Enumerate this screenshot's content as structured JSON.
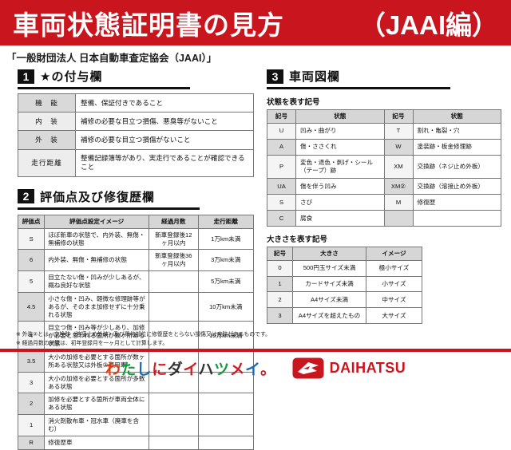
{
  "header": {
    "title": "車両状態証明書の見方",
    "edition": "（JAAI編）",
    "subtitle": "「一般財団法人 日本自動車査定協会（JAAI）」",
    "accent_color": "#c9151e"
  },
  "section1": {
    "number": "1",
    "title": "★の付与欄",
    "rows": [
      {
        "label": "機　能",
        "desc": "整備、保証付きであること"
      },
      {
        "label": "内　装",
        "desc": "補修の必要な目立つ損傷、悪臭等がないこと"
      },
      {
        "label": "外　装",
        "desc": "補修の必要な目立つ損傷がないこと"
      },
      {
        "label": "走行距離",
        "desc": "整備記録簿等があり、実走行であることが確認できること"
      }
    ]
  },
  "section2": {
    "number": "2",
    "title": "評価点及び修復歴欄",
    "headers": [
      "評価点",
      "評価点設定イメージ",
      "経過月数",
      "走行距離"
    ],
    "rows": [
      {
        "score": "S",
        "desc": "ほぼ新車の状態で、内外装、無傷・無補修の状態",
        "months": "新車登録後12ヶ月以内",
        "mileage": "1万km未満"
      },
      {
        "score": "6",
        "desc": "内外装、無傷・無補修の状態",
        "months": "新車登録後36ヶ月以内",
        "mileage": "3万km未満"
      },
      {
        "score": "5",
        "desc": "目立たない傷・凹みが少しあるが、概ね良好な状態",
        "months": "",
        "mileage": "5万km未満"
      },
      {
        "score": "4.5",
        "desc": "小さな傷・凹み、軽微な修理跡等があるが、そのまま加修せずに十分乗れる状態",
        "months": "",
        "mileage": "10万km未満"
      },
      {
        "score": "4",
        "desc": "目立つ傷・凹み等が少しあり、加修が必要と思われる箇所が数ヶ所ある状態",
        "months": "",
        "mileage": "15万km未満"
      },
      {
        "score": "3.5",
        "desc": "大小の加修を必要とする箇所が数ヶ所ある状態又は外板②適用車",
        "months": "",
        "mileage": ""
      },
      {
        "score": "3",
        "desc": "大小の加修を必要とする箇所が多数ある状態",
        "months": "",
        "mileage": ""
      },
      {
        "score": "2",
        "desc": "加修を必要とする箇所が車両全体にある状態",
        "months": "",
        "mileage": ""
      },
      {
        "score": "1",
        "desc": "消火剤散布車・冠水車（廃車を含む）",
        "months": "",
        "mileage": ""
      },
      {
        "score": "R",
        "desc": "修復歴車",
        "months": "",
        "mileage": ""
      }
    ],
    "notes": [
      "※ 外装②とは、交換跡（溶接止め外装）及び骨格部位に修復歴をとらない損傷又は痕跡があるものです。",
      "※ 経過月数の計算は、初年登録月を一ヶ月として計算します。"
    ]
  },
  "section3": {
    "number": "3",
    "title": "車両図欄",
    "state_table": {
      "caption": "状態を表す記号",
      "headers": [
        "記号",
        "状態",
        "記号",
        "状態"
      ],
      "rows": [
        {
          "sym1": "U",
          "state1": "凹み・曲がり",
          "sym2": "T",
          "state2": "割れ・亀裂・穴"
        },
        {
          "sym1": "A",
          "state1": "傷・ささくれ",
          "sym2": "W",
          "state2": "塗装跡・板金修理跡"
        },
        {
          "sym1": "P",
          "state1": "変色・退色・剥げ・シール（テープ）跡",
          "sym2": "XM",
          "state2": "交換跡（ネジ止め外板）"
        },
        {
          "sym1": "UA",
          "state1": "傷を伴う凹み",
          "sym2": "XM②",
          "state2": "交換跡（溶接止め外板）"
        },
        {
          "sym1": "S",
          "state1": "さび",
          "sym2": "M",
          "state2": "修復歴"
        },
        {
          "sym1": "C",
          "state1": "腐食",
          "sym2": "",
          "state2": ""
        }
      ]
    },
    "size_table": {
      "caption": "大きさを表す記号",
      "headers": [
        "記号",
        "大きさ",
        "イメージ"
      ],
      "rows": [
        {
          "sym": "0",
          "size": "500円玉サイズ未満",
          "image": "極小サイズ"
        },
        {
          "sym": "1",
          "size": "カードサイズ未満",
          "image": "小サイズ"
        },
        {
          "sym": "2",
          "size": "A4サイズ未満",
          "image": "中サイズ"
        },
        {
          "sym": "3",
          "size": "A4サイズを超えたもの",
          "image": "大サイズ"
        }
      ]
    }
  },
  "footer": {
    "slogan": "わたしにダイハツメイ。",
    "slogan_colors": [
      "#e8380d",
      "#159b3f",
      "#1d6ab4",
      "#d01c23",
      "#333333",
      "#d01c23",
      "#333333",
      "#159b3f",
      "#d01c23",
      "#1d6ab4",
      "#d01c23"
    ],
    "brand": "DAIHATSU",
    "brand_color": "#c9151e",
    "logo_icon": "daihatsu-d-emblem"
  }
}
